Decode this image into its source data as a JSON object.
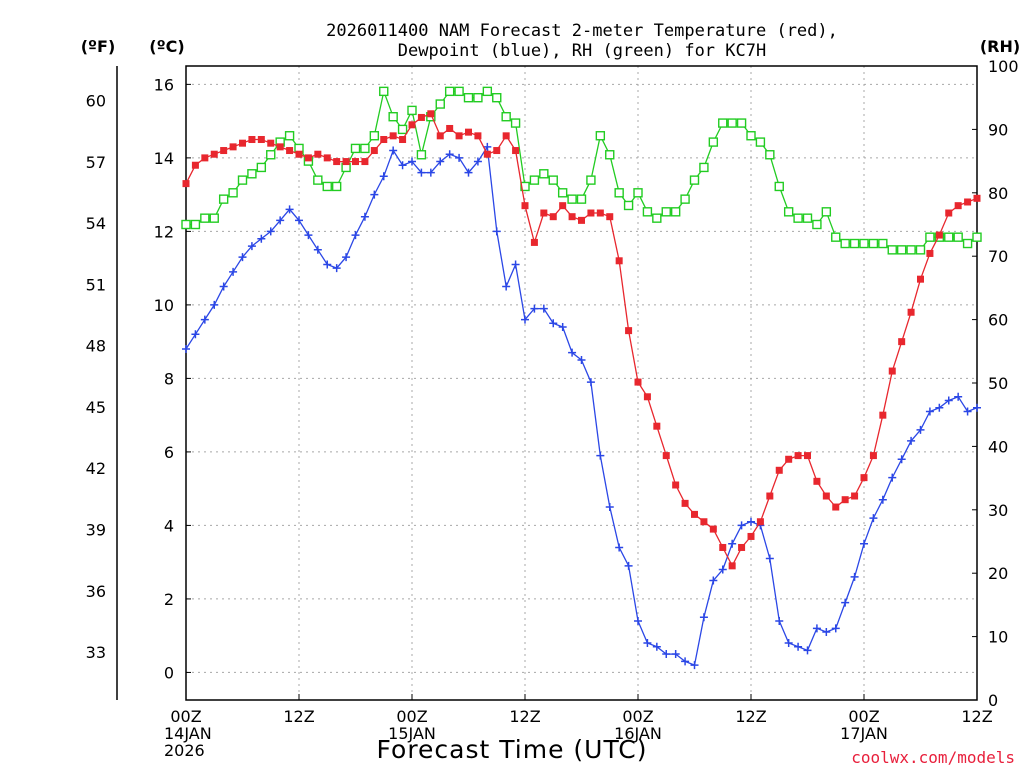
{
  "chart_data": {
    "type": "line",
    "title_lines": [
      "2026011400 NAM Forecast 2-meter Temperature (red),",
      "Dewpoint (blue), RH (green) for KC7H"
    ],
    "unit_labels": {
      "fahrenheit": "(ºF)",
      "celsius": "(ºC)",
      "rh": "(RH)"
    },
    "xlabel": "Forecast Time (UTC)",
    "credit": "coolwx.com/models",
    "xlim": [
      0,
      84
    ],
    "ylim_celsius": [
      -0.75,
      16.5
    ],
    "ylim_rh": [
      0,
      100
    ],
    "celsius_ticks": [
      "0",
      "2",
      "4",
      "6",
      "8",
      "10",
      "12",
      "14",
      "16"
    ],
    "fahrenheit_ticks": [
      "33",
      "36",
      "39",
      "42",
      "45",
      "48",
      "51",
      "54",
      "57",
      "60"
    ],
    "rh_ticks": [
      "0",
      "10",
      "20",
      "30",
      "40",
      "50",
      "60",
      "70",
      "80",
      "90",
      "100"
    ],
    "x_ticks": [
      {
        "hour": 0,
        "lines": [
          "00Z",
          "14JAN",
          "2026"
        ]
      },
      {
        "hour": 12,
        "lines": [
          "12Z"
        ]
      },
      {
        "hour": 24,
        "lines": [
          "00Z",
          "15JAN"
        ]
      },
      {
        "hour": 36,
        "lines": [
          "12Z"
        ]
      },
      {
        "hour": 48,
        "lines": [
          "00Z",
          "16JAN"
        ]
      },
      {
        "hour": 60,
        "lines": [
          "12Z"
        ]
      },
      {
        "hour": 72,
        "lines": [
          "00Z",
          "17JAN"
        ]
      },
      {
        "hour": 84,
        "lines": [
          "12Z"
        ]
      }
    ],
    "series": [
      {
        "name": "2-meter Temperature",
        "color": "#e8272e",
        "marker": "filled-square",
        "axis": "celsius",
        "values": [
          13.3,
          13.8,
          14.0,
          14.1,
          14.2,
          14.3,
          14.4,
          14.5,
          14.5,
          14.4,
          14.3,
          14.2,
          14.1,
          14.0,
          14.1,
          14.0,
          13.9,
          13.9,
          13.9,
          13.9,
          14.2,
          14.5,
          14.6,
          14.5,
          14.9,
          15.1,
          15.2,
          14.6,
          14.8,
          14.6,
          14.7,
          14.6,
          14.1,
          14.2,
          14.6,
          14.2,
          12.7,
          11.7,
          12.5,
          12.4,
          12.7,
          12.4,
          12.3,
          12.5,
          12.5,
          12.4,
          11.2,
          9.3,
          7.9,
          7.5,
          6.7,
          5.9,
          5.1,
          4.6,
          4.3,
          4.1,
          3.9,
          3.4,
          2.9,
          3.4,
          3.7,
          4.1,
          4.8,
          5.5,
          5.8,
          5.9,
          5.9,
          5.2,
          4.8,
          4.5,
          4.7,
          4.8,
          5.3,
          5.9,
          7.0,
          8.2,
          9.0,
          9.8,
          10.7,
          11.4,
          11.9,
          12.5,
          12.7,
          12.8,
          12.9
        ]
      },
      {
        "name": "Dewpoint",
        "color": "#2b47e6",
        "marker": "plus",
        "axis": "celsius",
        "values": [
          8.8,
          9.2,
          9.6,
          10.0,
          10.5,
          10.9,
          11.3,
          11.6,
          11.8,
          12.0,
          12.3,
          12.6,
          12.3,
          11.9,
          11.5,
          11.1,
          11.0,
          11.3,
          11.9,
          12.4,
          13.0,
          13.5,
          14.2,
          13.8,
          13.9,
          13.6,
          13.6,
          13.9,
          14.1,
          14.0,
          13.6,
          13.9,
          14.3,
          12.0,
          10.5,
          11.1,
          9.6,
          9.9,
          9.9,
          9.5,
          9.4,
          8.7,
          8.5,
          7.9,
          5.9,
          4.5,
          3.4,
          2.9,
          1.4,
          0.8,
          0.7,
          0.5,
          0.5,
          0.3,
          0.2,
          1.5,
          2.5,
          2.8,
          3.5,
          4.0,
          4.1,
          4.0,
          3.1,
          1.4,
          0.8,
          0.7,
          0.6,
          1.2,
          1.1,
          1.2,
          1.9,
          2.6,
          3.5,
          4.2,
          4.7,
          5.3,
          5.8,
          6.3,
          6.6,
          7.1,
          7.2,
          7.4,
          7.5,
          7.1,
          7.2
        ]
      },
      {
        "name": "RH",
        "color": "#22cc22",
        "marker": "open-square",
        "axis": "rh",
        "values": [
          75,
          75,
          76,
          76,
          79,
          80,
          82,
          83,
          84,
          86,
          88,
          89,
          87,
          85,
          82,
          81,
          81,
          84,
          87,
          87,
          89,
          96,
          92,
          90,
          93,
          86,
          92,
          94,
          96,
          96,
          95,
          95,
          96,
          95,
          92,
          91,
          81,
          82,
          83,
          82,
          80,
          79,
          79,
          82,
          89,
          86,
          80,
          78,
          80,
          77,
          76,
          77,
          77,
          79,
          82,
          84,
          88,
          91,
          91,
          91,
          89,
          88,
          86,
          81,
          77,
          76,
          76,
          75,
          77,
          73,
          72,
          72,
          72,
          72,
          72,
          71,
          71,
          71,
          71,
          73,
          73,
          73,
          73,
          72,
          73
        ]
      }
    ]
  }
}
